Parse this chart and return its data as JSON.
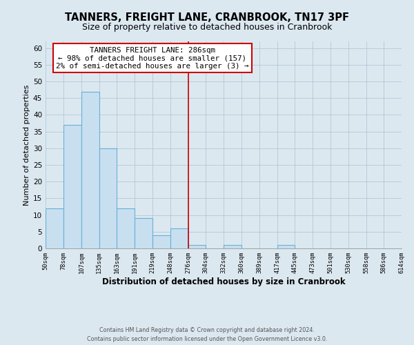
{
  "title": "TANNERS, FREIGHT LANE, CRANBROOK, TN17 3PF",
  "subtitle": "Size of property relative to detached houses in Cranbrook",
  "xlabel": "Distribution of detached houses by size in Cranbrook",
  "ylabel": "Number of detached properties",
  "bar_edges": [
    50,
    78,
    107,
    135,
    163,
    191,
    219,
    248,
    276,
    304,
    332,
    360,
    389,
    417,
    445,
    473,
    501,
    530,
    558,
    586,
    614
  ],
  "bar_heights": [
    12,
    37,
    47,
    30,
    12,
    9,
    4,
    6,
    1,
    0,
    1,
    0,
    0,
    1,
    0,
    0,
    0,
    0,
    0,
    0
  ],
  "bar_color": "#c8dff0",
  "bar_edgecolor": "#6aafd6",
  "reference_line_x": 276,
  "reference_line_color": "#cc0000",
  "ylim": [
    0,
    62
  ],
  "yticks": [
    0,
    5,
    10,
    15,
    20,
    25,
    30,
    35,
    40,
    45,
    50,
    55,
    60
  ],
  "annotation_title": "TANNERS FREIGHT LANE: 286sqm",
  "annotation_line1": "← 98% of detached houses are smaller (157)",
  "annotation_line2": "2% of semi-detached houses are larger (3) →",
  "annotation_box_color": "#ffffff",
  "annotation_box_edgecolor": "#cc0000",
  "footer_line1": "Contains HM Land Registry data © Crown copyright and database right 2024.",
  "footer_line2": "Contains public sector information licensed under the Open Government Licence v3.0.",
  "bg_color": "#dce8f0",
  "plot_bg_color": "#dce8f0",
  "title_fontsize": 10.5,
  "subtitle_fontsize": 9,
  "tick_labels": [
    "50sqm",
    "78sqm",
    "107sqm",
    "135sqm",
    "163sqm",
    "191sqm",
    "219sqm",
    "248sqm",
    "276sqm",
    "304sqm",
    "332sqm",
    "360sqm",
    "389sqm",
    "417sqm",
    "445sqm",
    "473sqm",
    "501sqm",
    "530sqm",
    "558sqm",
    "586sqm",
    "614sqm"
  ]
}
